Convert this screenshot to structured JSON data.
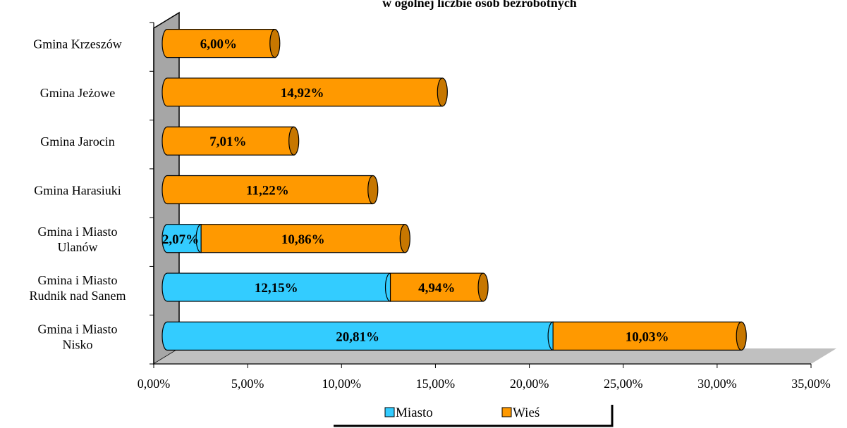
{
  "chart_data": {
    "type": "bar",
    "orientation": "horizontal",
    "stacked": true,
    "title": "w ogólnej liczbie osób bezrobotnych",
    "categories": [
      [
        "Gmina i Miasto",
        "Nisko"
      ],
      [
        "Gmina i Miasto",
        "Rudnik nad Sanem"
      ],
      [
        "Gmina i Miasto",
        "Ulanów"
      ],
      [
        "Gmina Harasiuki"
      ],
      [
        "Gmina Jarocin"
      ],
      [
        "Gmina Jeżowe"
      ],
      [
        "Gmina Krzeszów"
      ]
    ],
    "series": [
      {
        "name": "Miasto",
        "color": "#33CCFF",
        "values": [
          20.81,
          12.15,
          2.07,
          0,
          0,
          0,
          0
        ],
        "labels": [
          "20,81%",
          "12,15%",
          "2,07%",
          "",
          "",
          "",
          ""
        ]
      },
      {
        "name": "Wieś",
        "color": "#FF9900",
        "values": [
          10.03,
          4.94,
          10.86,
          11.22,
          7.01,
          14.92,
          6.0
        ],
        "labels": [
          "10,03%",
          "4,94%",
          "10,86%",
          "11,22%",
          "7,01%",
          "14,92%",
          "6,00%"
        ]
      }
    ],
    "xlim": [
      0,
      35
    ],
    "x_ticks": [
      0,
      5,
      10,
      15,
      20,
      25,
      30,
      35
    ],
    "x_tick_labels": [
      "0,00%",
      "5,00%",
      "10,00%",
      "15,00%",
      "20,00%",
      "25,00%",
      "30,00%",
      "35,00%"
    ],
    "legend_position": "bottom",
    "grid": false
  }
}
